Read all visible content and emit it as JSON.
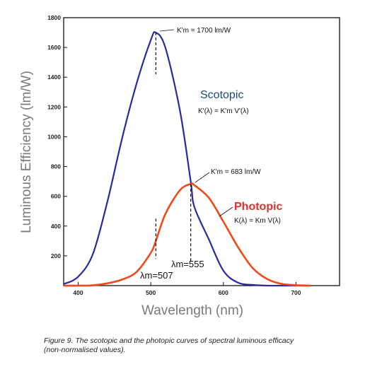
{
  "chart_data": {
    "type": "line",
    "xlabel": "Wavelength (nm)",
    "ylabel": "Luminous Efficiency (lm/W)",
    "xlim": [
      380,
      760
    ],
    "ylim": [
      0,
      1800
    ],
    "x_ticks": [
      "400",
      "500",
      "600",
      "700"
    ],
    "y_ticks": [
      "200",
      "400",
      "600",
      "800",
      "1000",
      "1200",
      "1400",
      "1600",
      "1800"
    ],
    "grid": false,
    "x": [
      380,
      400,
      420,
      440,
      460,
      480,
      500,
      507,
      520,
      540,
      555,
      560,
      580,
      600,
      620,
      640,
      660,
      680,
      700,
      720
    ],
    "series": [
      {
        "name": "Scotopic",
        "color": "#2a2aa0",
        "values": [
          10,
          60,
          210,
          560,
          980,
          1350,
          1650,
          1700,
          1600,
          1180,
          700,
          530,
          310,
          100,
          20,
          5,
          0,
          0,
          0,
          0
        ]
      },
      {
        "name": "Photopic",
        "color": "#ef4a18",
        "values": [
          0,
          0,
          2,
          15,
          40,
          90,
          220,
          300,
          480,
          640,
          683,
          675,
          590,
          430,
          260,
          120,
          45,
          12,
          3,
          0
        ]
      }
    ],
    "annotations": {
      "scotopic_peak": "K'm = 1700 lm/W",
      "photopic_peak": "K'm = 683 lm/W",
      "scotopic_label": "Scotopic",
      "scotopic_formula": "K'(λ) = K'm V'(λ)",
      "photopic_label": "Photopic",
      "photopic_formula": "K(λ) = Km V(λ)",
      "lambda_507": "λm=507",
      "lambda_555": "λm=555"
    }
  },
  "caption": {
    "line1": "Figure 9. The scotopic and the photopic curves of spectral luminous efficacy",
    "line2": "(non-normalised values)."
  }
}
